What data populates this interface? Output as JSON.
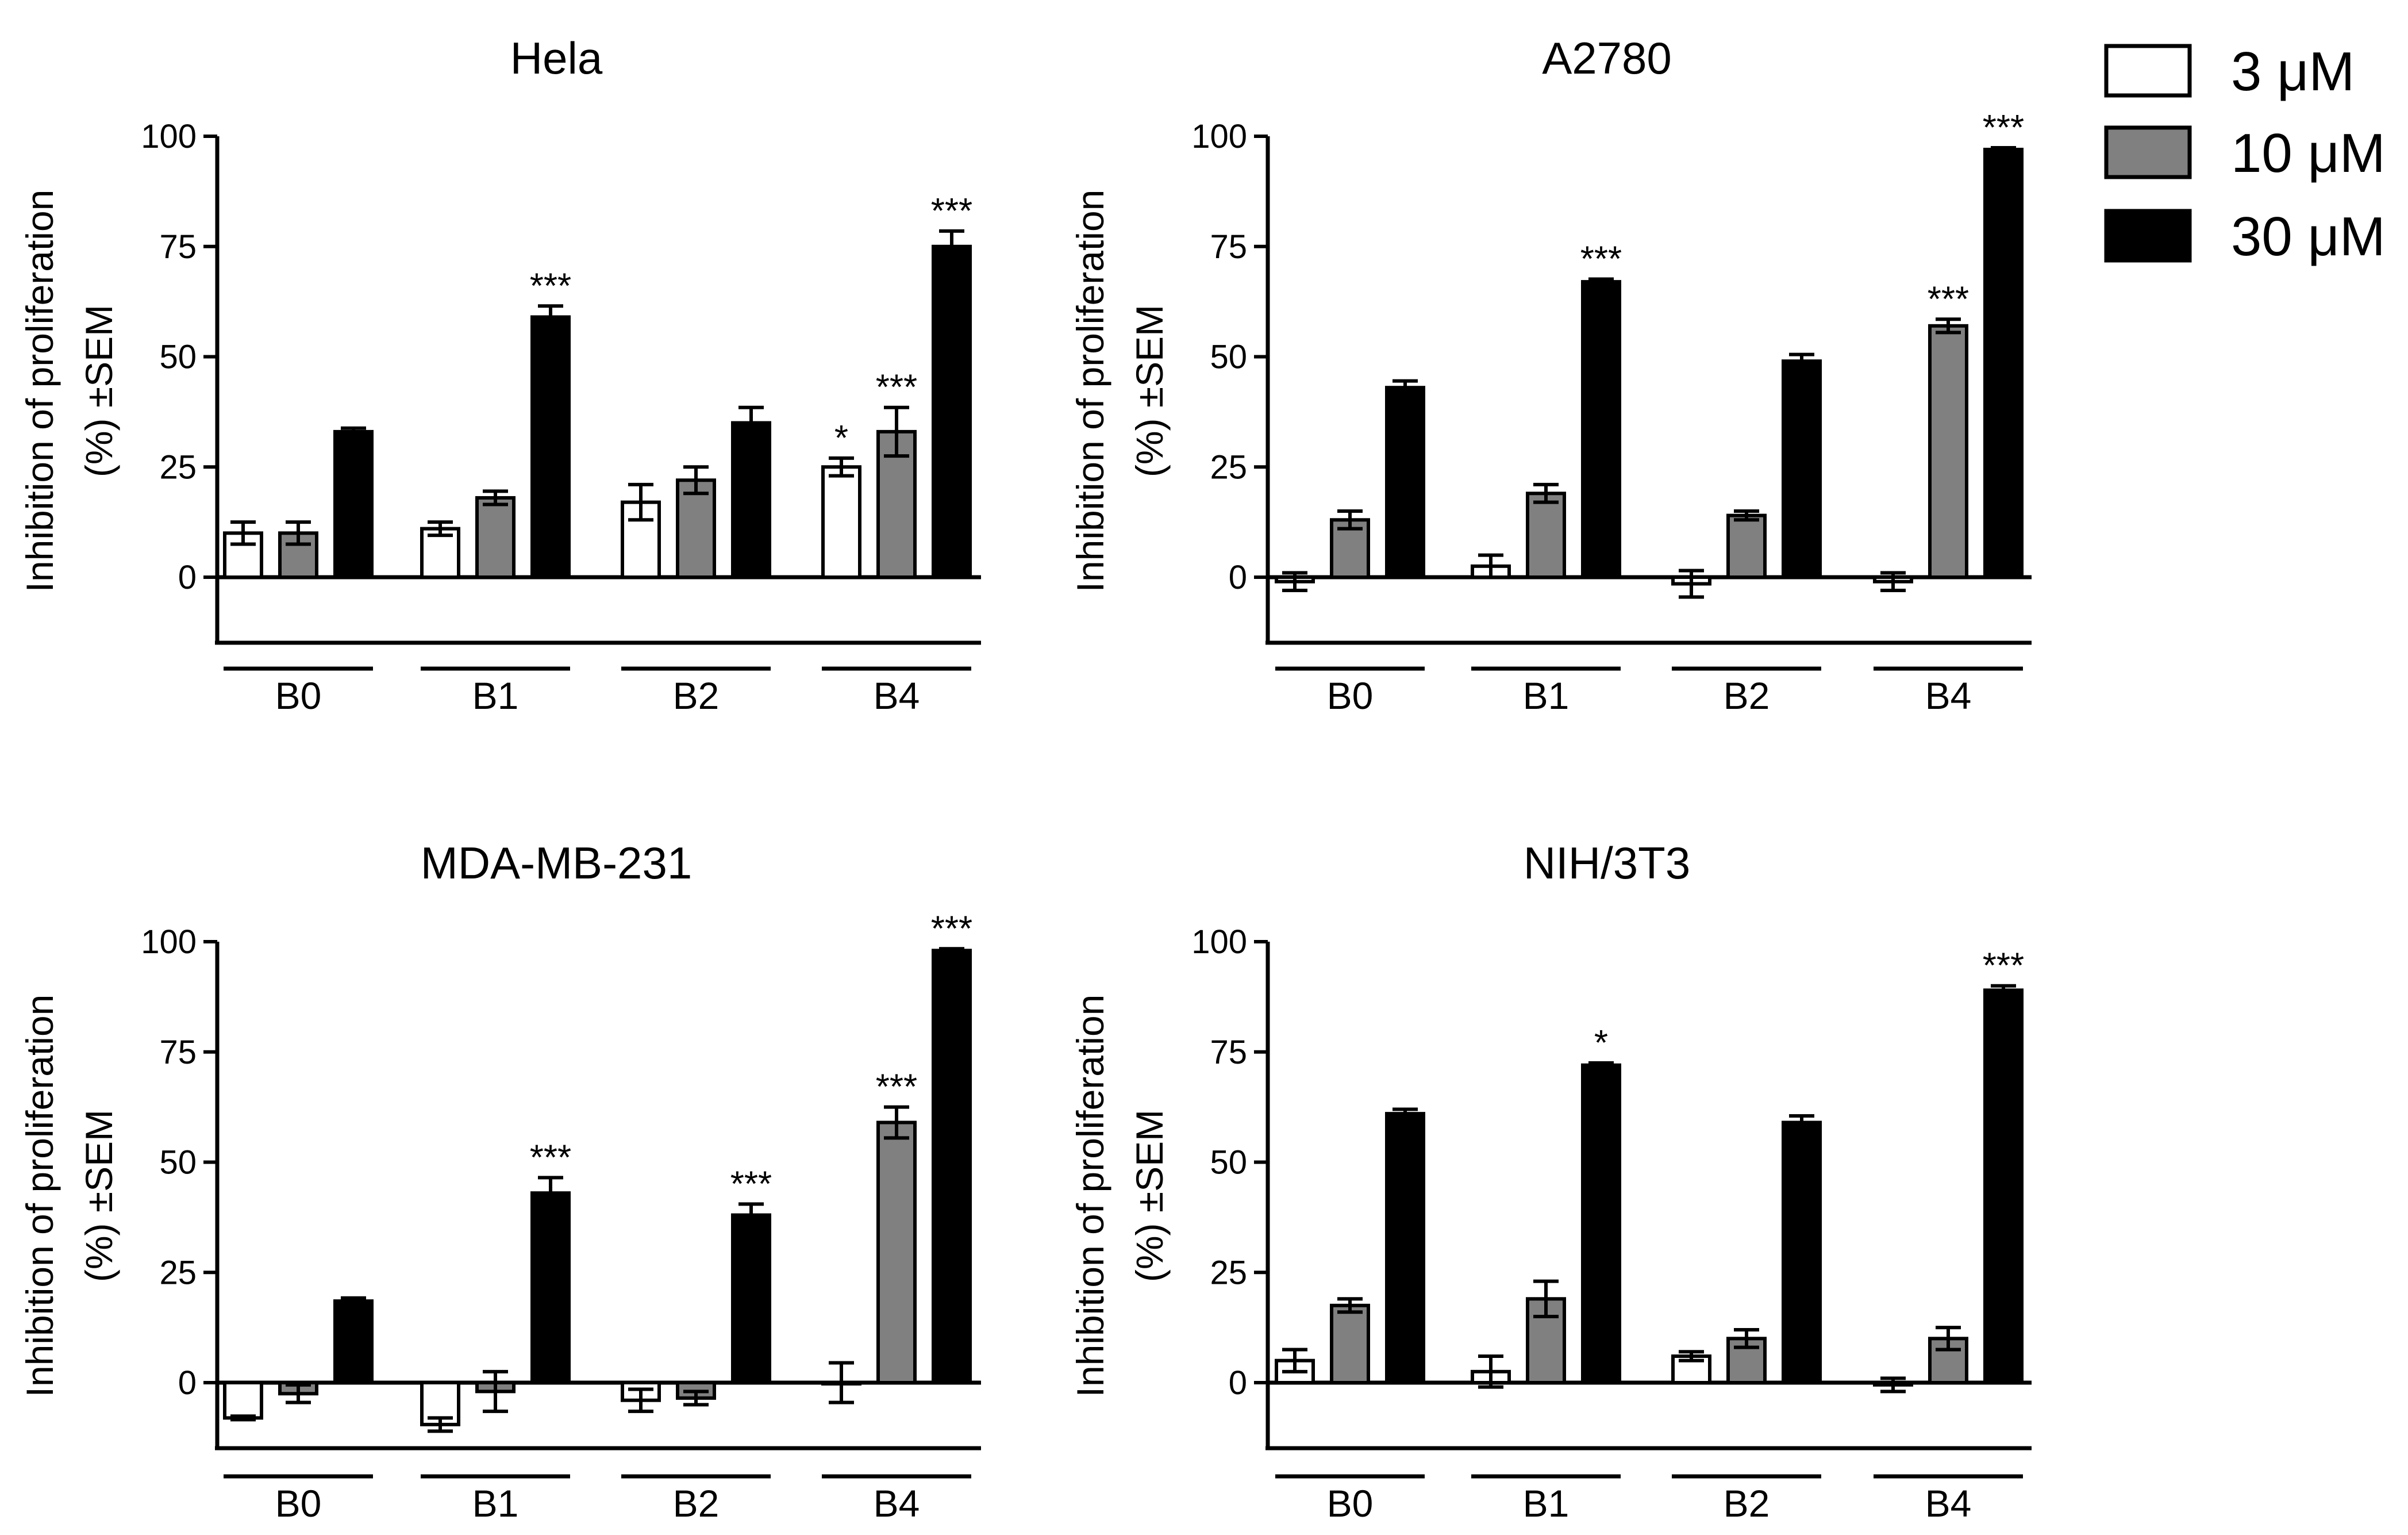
{
  "legend": {
    "items": [
      {
        "label": "3 μM",
        "color": "#ffffff"
      },
      {
        "label": "10 μM",
        "color": "#808080"
      },
      {
        "label": "30 μM",
        "color": "#000000"
      }
    ]
  },
  "chart_data": [
    {
      "type": "bar",
      "title": "Hela",
      "ylabel_line1": "Inhibition of proliferation",
      "ylabel_line2": "(%) ±SEM",
      "ylim": [
        -15,
        100
      ],
      "yticks": [
        "100",
        "75",
        "50",
        "25",
        "0"
      ],
      "categories": [
        "B0",
        "B1",
        "B2",
        "B4"
      ],
      "series": [
        {
          "name": "3 μM",
          "values": [
            10,
            11,
            17,
            25
          ],
          "errors": [
            2.5,
            1.5,
            4,
            2
          ],
          "sig": [
            "",
            "",
            "",
            "*"
          ]
        },
        {
          "name": "10 μM",
          "values": [
            10,
            18,
            22,
            33
          ],
          "errors": [
            2.5,
            1.5,
            3,
            5.5
          ],
          "sig": [
            "",
            "",
            "",
            "***"
          ]
        },
        {
          "name": "30 μM",
          "values": [
            33,
            59,
            35,
            75
          ],
          "errors": [
            0.8,
            2.5,
            3.5,
            3.5
          ],
          "sig": [
            "",
            "***",
            "",
            "***"
          ]
        }
      ]
    },
    {
      "type": "bar",
      "title": "A2780",
      "ylabel_line1": "Inhibition of proliferation",
      "ylabel_line2": "(%) ±SEM",
      "ylim": [
        -15,
        100
      ],
      "yticks": [
        "100",
        "75",
        "50",
        "25",
        "0"
      ],
      "categories": [
        "B0",
        "B1",
        "B2",
        "B4"
      ],
      "series": [
        {
          "name": "3 μM",
          "values": [
            -1,
            2.5,
            -1.5,
            -1
          ],
          "errors": [
            2,
            2.5,
            3,
            2
          ],
          "sig": [
            "",
            "",
            "",
            ""
          ]
        },
        {
          "name": "10 μM",
          "values": [
            13,
            19,
            14,
            57
          ],
          "errors": [
            2,
            2,
            1,
            1.5
          ],
          "sig": [
            "",
            "",
            "",
            "***"
          ]
        },
        {
          "name": "30 μM",
          "values": [
            43,
            67,
            49,
            97
          ],
          "errors": [
            1.5,
            0.6,
            1.5,
            0.4
          ],
          "sig": [
            "",
            "***",
            "",
            "***"
          ]
        }
      ]
    },
    {
      "type": "bar",
      "title": "MDA-MB-231",
      "ylabel_line1": "Inhibition of proliferation",
      "ylabel_line2": "(%) ±SEM",
      "ylim": [
        -15,
        100
      ],
      "yticks": [
        "100",
        "75",
        "50",
        "25",
        "0"
      ],
      "categories": [
        "B0",
        "B1",
        "B2",
        "B4"
      ],
      "series": [
        {
          "name": "3 μM",
          "values": [
            -8,
            -9.5,
            -4,
            0
          ],
          "errors": [
            0.4,
            1.5,
            2.5,
            4.5
          ],
          "sig": [
            "",
            "",
            "",
            ""
          ]
        },
        {
          "name": "10 μM",
          "values": [
            -2.5,
            -2,
            -3.5,
            59
          ],
          "errors": [
            2,
            4.5,
            1.5,
            3.5
          ],
          "sig": [
            "",
            "",
            "",
            "***"
          ]
        },
        {
          "name": "30 μM",
          "values": [
            18.5,
            43,
            38,
            98
          ],
          "errors": [
            0.7,
            3.5,
            2.5,
            0.4
          ],
          "sig": [
            "",
            "***",
            "***",
            "***"
          ]
        }
      ]
    },
    {
      "type": "bar",
      "title": "NIH/3T3",
      "ylabel_line1": "Inhibition of proliferation",
      "ylabel_line2": "(%) ±SEM",
      "ylim": [
        -15,
        100
      ],
      "yticks": [
        "100",
        "75",
        "50",
        "25",
        "0"
      ],
      "categories": [
        "B0",
        "B1",
        "B2",
        "B4"
      ],
      "series": [
        {
          "name": "3 μM",
          "values": [
            5,
            2.5,
            6,
            -0.5
          ],
          "errors": [
            2.5,
            3.5,
            1,
            1.5
          ],
          "sig": [
            "",
            "",
            "",
            ""
          ]
        },
        {
          "name": "10 μM",
          "values": [
            17.5,
            19,
            10,
            10
          ],
          "errors": [
            1.5,
            4,
            2,
            2.5
          ],
          "sig": [
            "",
            "",
            "",
            ""
          ]
        },
        {
          "name": "30 μM",
          "values": [
            61,
            72,
            59,
            89
          ],
          "errors": [
            1,
            0.5,
            1.5,
            1
          ],
          "sig": [
            "",
            "*",
            "",
            "***"
          ]
        }
      ]
    }
  ]
}
